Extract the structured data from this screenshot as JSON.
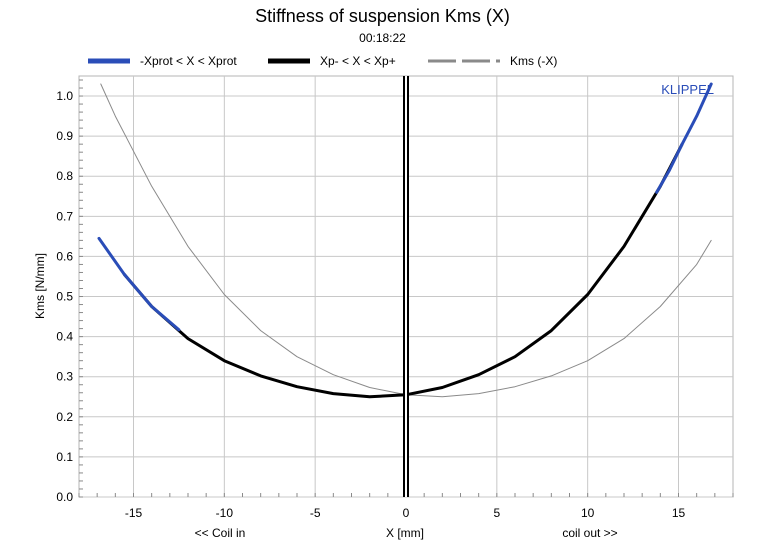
{
  "chart_data": {
    "type": "line",
    "title": "Stiffness of suspension Kms (X)",
    "subtitle": "00:18:22",
    "brand": "KLIPPEL",
    "xlabel": "X [mm]",
    "xlabel_left": "<< Coil in",
    "xlabel_right": "coil out >>",
    "ylabel": "Kms [N/mm]",
    "xlim": [
      -18,
      18
    ],
    "ylim": [
      0,
      1.05
    ],
    "xticks": [
      -15,
      -10,
      -5,
      0,
      5,
      10,
      15
    ],
    "yticks": [
      0.0,
      0.1,
      0.2,
      0.3,
      0.4,
      0.5,
      0.6,
      0.7,
      0.8,
      0.9,
      1.0
    ],
    "grid": true,
    "legend_position": "top",
    "marker_x": 0,
    "series": [
      {
        "name": "-Xprot < X < Xprot",
        "color": "#2a4db8",
        "x": [
          -16.9,
          -15.5,
          -14.0,
          -12.5
        ],
        "y": [
          0.645,
          0.555,
          0.475,
          0.417
        ]
      },
      {
        "name": "Xp- < X < Xp+",
        "color": "#000000",
        "x": [
          -15.5,
          -14,
          -12,
          -10,
          -8,
          -6,
          -4,
          -2,
          0,
          2,
          4,
          6,
          8,
          10,
          12,
          14,
          15.2
        ],
        "y": [
          0.555,
          0.475,
          0.395,
          0.34,
          0.302,
          0.275,
          0.258,
          0.25,
          0.255,
          0.273,
          0.305,
          0.35,
          0.415,
          0.505,
          0.625,
          0.775,
          0.88
        ]
      },
      {
        "name": "-Xprot < X < Xprot",
        "color": "#2a4db8",
        "x": [
          13.8,
          14.5,
          15.2,
          16.0,
          16.8
        ],
        "y": [
          0.76,
          0.815,
          0.88,
          0.95,
          1.03
        ]
      },
      {
        "name": "Kms (-X)",
        "color": "#8a8a8a",
        "x": [
          -16.8,
          -16,
          -14,
          -12,
          -10,
          -8,
          -6,
          -4,
          -2,
          0,
          2,
          4,
          6,
          8,
          10,
          12,
          14,
          16,
          16.8
        ],
        "y": [
          1.03,
          0.95,
          0.775,
          0.625,
          0.505,
          0.415,
          0.35,
          0.305,
          0.273,
          0.255,
          0.25,
          0.258,
          0.275,
          0.302,
          0.34,
          0.395,
          0.475,
          0.58,
          0.64
        ]
      }
    ],
    "legend": [
      {
        "label": "-Xprot < X < Xprot",
        "color": "#2a4db8",
        "style": "thick"
      },
      {
        "label": "Xp- < X < Xp+",
        "color": "#000000",
        "style": "thick"
      },
      {
        "label": "Kms (-X)",
        "color": "#8a8a8a",
        "style": "dashed"
      }
    ]
  }
}
